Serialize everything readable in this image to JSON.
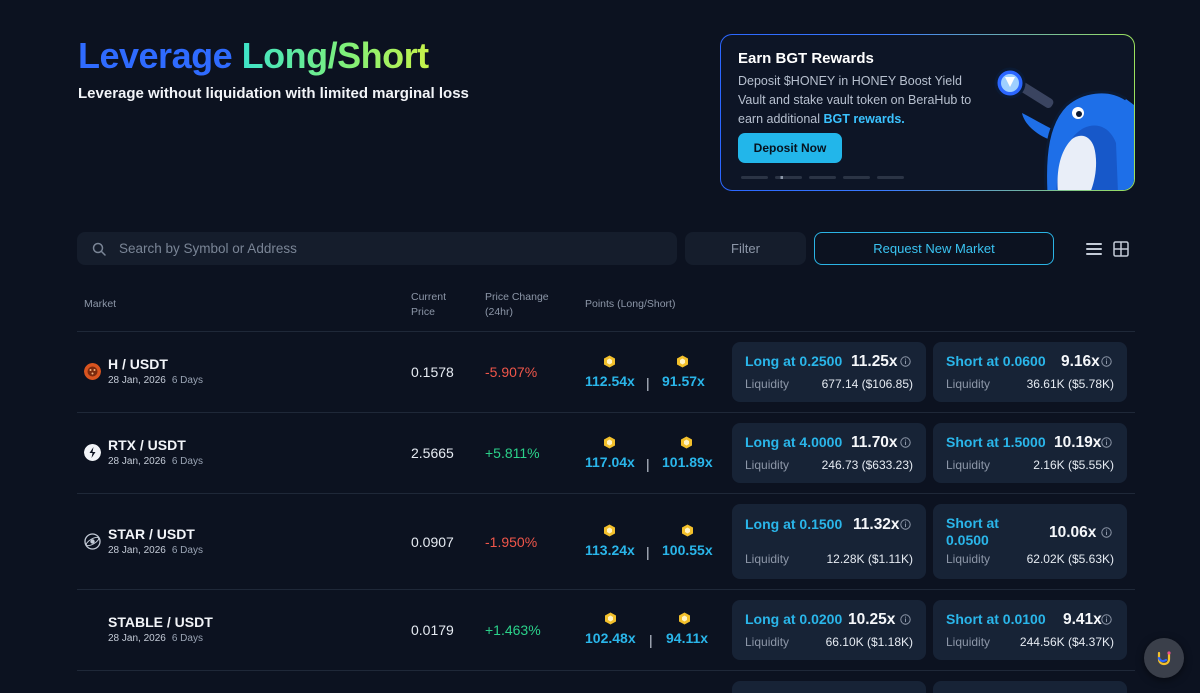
{
  "hero": {
    "title_part1": "Leverage",
    "title_part2": "Long/Short",
    "subtitle": "Leverage without liquidation with limited marginal loss"
  },
  "promo": {
    "title": "Earn BGT Rewards",
    "text": "Deposit $HONEY in HONEY Boost Yield Vault and stake vault token on BeraHub to earn additional",
    "highlight": "BGT rewards.",
    "button": "Deposit Now",
    "slides": 5,
    "active_slide": 2
  },
  "toolbar": {
    "search_placeholder": "Search by Symbol or Address",
    "filter_label": "Filter",
    "request_label": "Request New Market"
  },
  "table": {
    "headers": {
      "market": "Market",
      "current_price_1": "Current",
      "current_price_2": "Price",
      "price_change_1": "Price Change",
      "price_change_2": "(24hr)",
      "points": "Points (Long/Short)"
    },
    "rows": [
      {
        "pair": "H / USDT",
        "date": "28 Jan, 2026",
        "days": "6 Days",
        "price": "0.1578",
        "change": "-5.907%",
        "points_long": "112.54x",
        "points_short": "91.57x",
        "long_label": "Long at 0.2500",
        "long_mult": "11.25x",
        "long_liq_label": "Liquidity",
        "long_liq": "677.14 ($106.85)",
        "short_label": "Short at 0.0600",
        "short_mult": "9.16x",
        "short_liq_label": "Liquidity",
        "short_liq": "36.61K ($5.78K)"
      },
      {
        "pair": "RTX / USDT",
        "date": "28 Jan, 2026",
        "days": "6 Days",
        "price": "2.5665",
        "change": "+5.811%",
        "points_long": "117.04x",
        "points_short": "101.89x",
        "long_label": "Long at 4.0000",
        "long_mult": "11.70x",
        "long_liq_label": "Liquidity",
        "long_liq": "246.73 ($633.23)",
        "short_label": "Short at 1.5000",
        "short_mult": "10.19x",
        "short_liq_label": "Liquidity",
        "short_liq": "2.16K ($5.55K)"
      },
      {
        "pair": "STAR / USDT",
        "date": "28 Jan, 2026",
        "days": "6 Days",
        "price": "0.0907",
        "change": "-1.950%",
        "points_long": "113.24x",
        "points_short": "100.55x",
        "long_label": "Long at 0.1500",
        "long_mult": "11.32x",
        "long_liq_label": "Liquidity",
        "long_liq": "12.28K ($1.11K)",
        "short_label_1": "Short at",
        "short_label_2": "0.0500",
        "short_mult": "10.06x",
        "short_liq_label": "Liquidity",
        "short_liq": "62.02K ($5.63K)"
      },
      {
        "pair": "STABLE / USDT",
        "date": "28 Jan, 2026",
        "days": "6 Days",
        "price": "0.0179",
        "change": "+1.463%",
        "points_long": "102.48x",
        "points_short": "94.11x",
        "long_label": "Long at 0.0200",
        "long_mult": "10.25x",
        "long_liq_label": "Liquidity",
        "long_liq": "66.10K ($1.18K)",
        "short_label": "Short at 0.0100",
        "short_mult": "9.41x",
        "short_liq_label": "Liquidity",
        "short_liq": "244.56K ($4.37K)"
      }
    ]
  },
  "colors": {
    "background": "#0c1220",
    "accent": "#2ab6ea",
    "negative": "#f0564a",
    "positive": "#2bd18a",
    "card": "#172336"
  }
}
